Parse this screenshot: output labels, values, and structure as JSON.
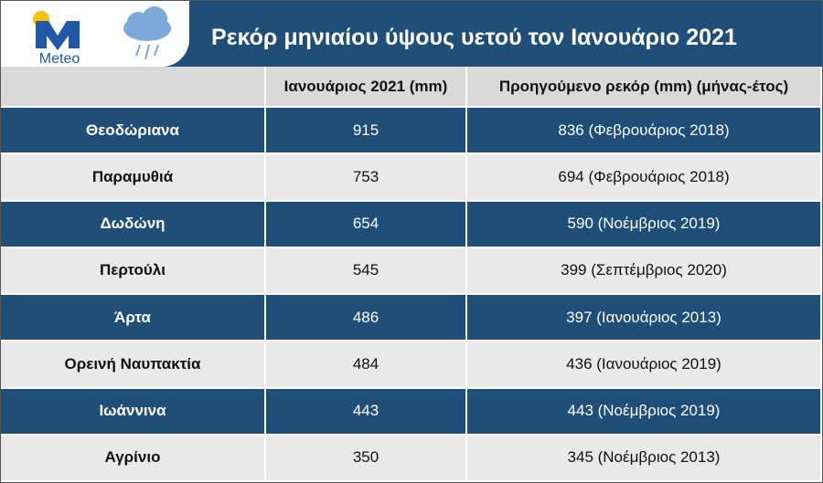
{
  "header": {
    "logo_text": "Meteo",
    "title": "Ρεκόρ μηνιαίου ύψους υετού τον Ιανουάριο 2021"
  },
  "table": {
    "columns": [
      "Ιανουάριος 2021 (mm)",
      "Προηγούμενο ρεκόρ (mm) (μήνας-έτος)"
    ],
    "rows": [
      [
        "Θεοδώριανα",
        915,
        "836 (Φεβρουάριος 2018)"
      ],
      [
        "Παραμυθιά",
        753,
        "694 (Φεβρουάριος 2018)"
      ],
      [
        "Δωδώνη",
        654,
        "590 (Νοέμβριος 2019)"
      ],
      [
        "Περτούλι",
        545,
        "399 (Σεπτέμβριος 2020)"
      ],
      [
        "Άρτα",
        486,
        "397 (Ιανουάριος 2013)"
      ],
      [
        "Ορεινή Ναυπακτία",
        484,
        "436 (Ιανουάριος 2019)"
      ],
      [
        "Ιωάννινα",
        443,
        "443 (Νοέμβριος 2019)"
      ],
      [
        "Αγρίνιο",
        350,
        "345 (Νοέμβριος 2013)"
      ]
    ]
  }
}
